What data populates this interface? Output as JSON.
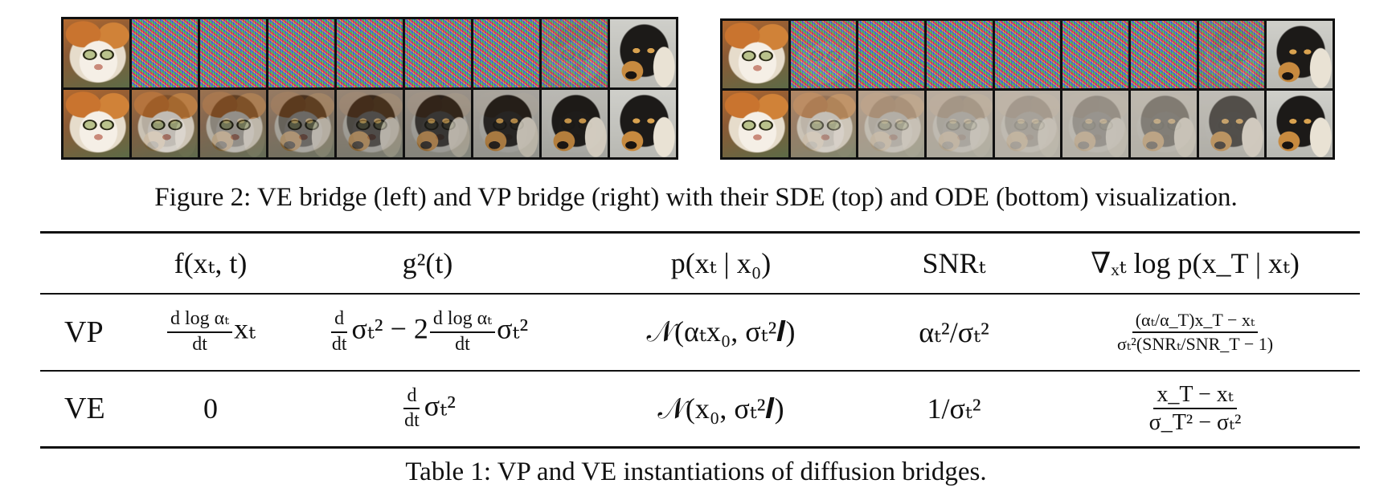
{
  "figure": {
    "caption": "Figure 2: VE bridge (left) and VP bridge (right) with their SDE (top) and ODE (bottom) visualization.",
    "strips": [
      {
        "side": "left",
        "rows": [
          {
            "row": "SDE",
            "frames": [
              "cat",
              "noise",
              "noise",
              "noise",
              "noise",
              "noise",
              "noise",
              "noise",
              "dog"
            ],
            "noise_levels": [
              0,
              1,
              1,
              1,
              1,
              1,
              1,
              0.85,
              0
            ],
            "dog_mix": [
              0,
              0,
              0,
              0,
              0,
              0,
              0,
              0.25,
              1
            ]
          },
          {
            "row": "ODE",
            "frames": [
              "cat",
              "cat",
              "cat",
              "cat",
              "cat",
              "dog",
              "dog",
              "dog",
              "dog"
            ],
            "noise_levels": [
              0,
              0,
              0,
              0,
              0,
              0,
              0,
              0,
              0
            ],
            "dog_mix": [
              0,
              0.12,
              0.25,
              0.38,
              0.5,
              0.62,
              0.75,
              0.88,
              1
            ]
          }
        ]
      },
      {
        "side": "right",
        "rows": [
          {
            "row": "SDE",
            "frames": [
              "cat",
              "noise",
              "noise",
              "noise",
              "noise",
              "noise",
              "noise",
              "noise",
              "dog"
            ],
            "noise_levels": [
              0,
              0.9,
              1,
              1,
              1,
              1,
              1,
              0.85,
              0
            ],
            "dog_mix": [
              0,
              0,
              0,
              0,
              0,
              0,
              0,
              0.3,
              1
            ]
          },
          {
            "row": "ODE",
            "frames": [
              "cat",
              "cat",
              "cat",
              "cat",
              "cat",
              "dog",
              "dog",
              "dog",
              "dog"
            ],
            "fade_levels": [
              0,
              0.3,
              0.55,
              0.65,
              0.7,
              0.65,
              0.55,
              0.3,
              0
            ],
            "dog_mix": [
              0,
              0.12,
              0.25,
              0.38,
              0.5,
              0.62,
              0.75,
              0.88,
              1
            ]
          }
        ]
      }
    ]
  },
  "table": {
    "caption": "Table 1: VP and VE instantiations of diffusion bridges.",
    "headers": {
      "col1": "f(xₜ, t)",
      "col2": "g²(t)",
      "col3": "p(xₜ | x₀)",
      "col4": "SNRₜ",
      "col5": "∇ₓₜ log p(x_T | xₜ)"
    },
    "rows": {
      "vp": {
        "label": "VP",
        "f_num": "d log αₜ",
        "f_den": "dt",
        "f_tail": "xₜ",
        "g_d_num": "d",
        "g_d_den": "dt",
        "g_mid": "σₜ² − 2",
        "g_num": "d log αₜ",
        "g_den": "dt",
        "g_tail": "σₜ²",
        "p": "𝒩(αₜx₀, σₜ²𝑰)",
        "snr": "αₜ²/σₜ²",
        "score_num": "(αₜ/α_T)x_T − xₜ",
        "score_den": "σₜ²(SNRₜ/SNR_T − 1)"
      },
      "ve": {
        "label": "VE",
        "f": "0",
        "g_d_num": "d",
        "g_d_den": "dt",
        "g_tail": "σₜ²",
        "p": "𝒩(x₀, σₜ²𝑰)",
        "snr": "1/σₜ²",
        "score_num": "x_T − xₜ",
        "score_den": "σ_T² − σₜ²"
      }
    }
  }
}
